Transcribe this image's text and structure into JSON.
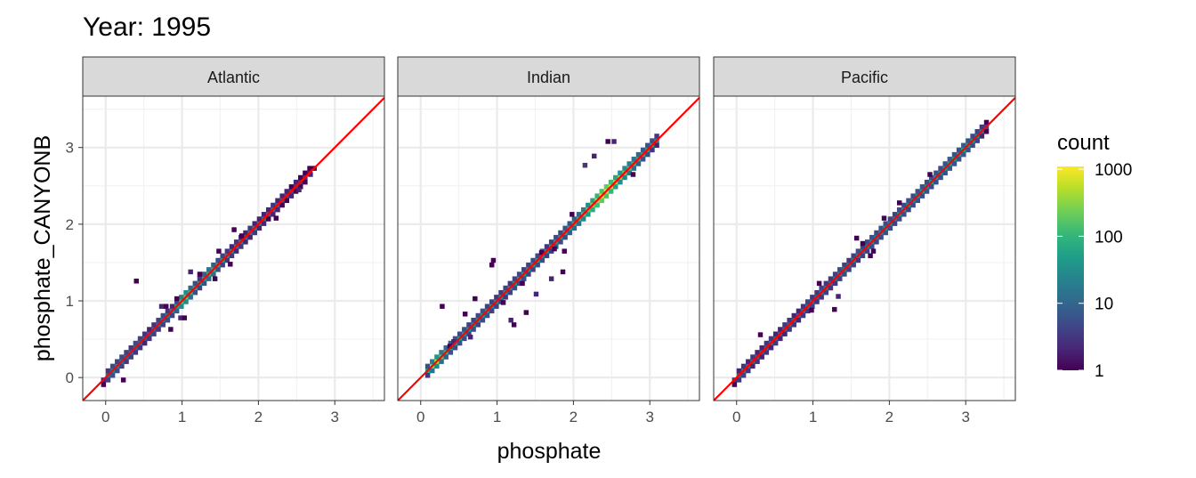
{
  "title": "Year: 1995",
  "chart_data": {
    "type": "heatmap",
    "subtype": "faceted 2D binned count (log color scale) with identity line",
    "title": "Year: 1995",
    "xlabel": "phosphate",
    "ylabel": "phosphate_CANYONB",
    "xlim": [
      -0.3,
      3.65
    ],
    "ylim": [
      -0.3,
      3.67
    ],
    "x_ticks": [
      "0",
      "1",
      "2",
      "3"
    ],
    "y_ticks": [
      "0",
      "1",
      "2",
      "3"
    ],
    "grid": true,
    "reference_line": {
      "slope": 1,
      "intercept": 0,
      "color": "#ff0000"
    },
    "bin_width": 0.06,
    "legend": {
      "title": "count",
      "position": "right",
      "scale": "log10",
      "range": [
        1,
        1100
      ],
      "labels": [
        "1000",
        "100",
        "10",
        "1"
      ],
      "label_values": [
        1000,
        100,
        10,
        1
      ],
      "colormap": [
        "#440154",
        "#482878",
        "#3e4989",
        "#31688e",
        "#26828e",
        "#1f9e89",
        "#35b779",
        "#6ece58",
        "#b5de2b",
        "#fde725"
      ]
    },
    "panels": [
      {
        "label": "Atlantic",
        "band": {
          "x_start": -0.06,
          "center": [
            2,
            15,
            20,
            20,
            15,
            12,
            10,
            10,
            12,
            8,
            8,
            10,
            12,
            15,
            20,
            30,
            60,
            150,
            200,
            100,
            60,
            40,
            50,
            80,
            100,
            60,
            40,
            30,
            25,
            20,
            20,
            15,
            20,
            25,
            20,
            15,
            10,
            12,
            10,
            8,
            6,
            5,
            4,
            3,
            3,
            2,
            1
          ],
          "above": [
            0,
            3,
            5,
            4,
            5,
            4,
            3,
            5,
            4,
            3,
            2,
            3,
            4,
            5,
            3,
            2,
            5,
            20,
            30,
            10,
            5,
            3,
            8,
            15,
            8,
            5,
            4,
            3,
            2,
            3,
            2,
            2,
            3,
            2,
            2,
            2,
            2,
            3,
            2,
            2,
            2,
            1,
            2,
            1,
            1,
            1,
            0
          ],
          "below": [
            1,
            4,
            6,
            5,
            4,
            3,
            4,
            3,
            3,
            2,
            3,
            4,
            3,
            4,
            5,
            4,
            8,
            25,
            30,
            12,
            6,
            4,
            6,
            10,
            12,
            6,
            4,
            3,
            3,
            2,
            3,
            2,
            2,
            3,
            2,
            2,
            1,
            2,
            2,
            1,
            1,
            2,
            1,
            1,
            1,
            0,
            0
          ]
        },
        "outliers": [
          [
            0.37,
            1.23,
            1
          ],
          [
            0.7,
            0.9,
            2
          ],
          [
            0.76,
            0.9,
            1
          ],
          [
            0.95,
            0.75,
            2
          ],
          [
            1.0,
            0.75,
            1
          ],
          [
            0.82,
            0.6,
            1
          ],
          [
            1.2,
            1.32,
            1
          ],
          [
            1.45,
            1.62,
            1
          ],
          [
            1.65,
            1.9,
            1
          ],
          [
            1.4,
            1.26,
            1
          ],
          [
            2.5,
            2.42,
            2
          ],
          [
            1.6,
            1.45,
            1
          ],
          [
            0.2,
            -0.06,
            1
          ],
          [
            2.65,
            2.62,
            2
          ],
          [
            1.75,
            1.82,
            1
          ],
          [
            1.08,
            1.35,
            2
          ],
          [
            0.9,
            1.0,
            1
          ],
          [
            2.2,
            2.05,
            1
          ]
        ]
      },
      {
        "label": "Indian",
        "band": {
          "x_start": 0.06,
          "center": [
            50,
            300,
            500,
            200,
            100,
            60,
            50,
            40,
            40,
            35,
            30,
            30,
            40,
            35,
            30,
            30,
            25,
            30,
            30,
            35,
            40,
            40,
            35,
            40,
            40,
            35,
            30,
            40,
            50,
            40,
            60,
            60,
            80,
            100,
            150,
            200,
            300,
            500,
            800,
            1000,
            600,
            400,
            300,
            200,
            150,
            100,
            80,
            60,
            50,
            40,
            30
          ],
          "above": [
            5,
            20,
            40,
            15,
            10,
            8,
            6,
            5,
            6,
            4,
            4,
            5,
            6,
            4,
            4,
            3,
            3,
            4,
            3,
            4,
            5,
            4,
            4,
            5,
            5,
            4,
            3,
            4,
            5,
            4,
            6,
            6,
            8,
            10,
            20,
            30,
            60,
            100,
            150,
            200,
            120,
            60,
            40,
            30,
            20,
            15,
            10,
            8,
            6,
            5,
            3
          ],
          "below": [
            3,
            15,
            30,
            12,
            8,
            6,
            5,
            6,
            5,
            4,
            5,
            4,
            5,
            6,
            4,
            4,
            4,
            3,
            4,
            5,
            4,
            5,
            4,
            4,
            5,
            5,
            4,
            3,
            6,
            5,
            5,
            8,
            10,
            12,
            25,
            40,
            80,
            120,
            200,
            150,
            100,
            50,
            30,
            25,
            15,
            12,
            8,
            6,
            5,
            3,
            2
          ]
        },
        "outliers": [
          [
            2.42,
            3.05,
            1
          ],
          [
            2.5,
            3.05,
            2
          ],
          [
            2.24,
            2.86,
            2
          ],
          [
            2.12,
            2.74,
            3
          ],
          [
            0.9,
            1.44,
            1
          ],
          [
            0.92,
            1.5,
            1
          ],
          [
            1.72,
            1.65,
            1
          ],
          [
            1.19,
            0.66,
            1
          ],
          [
            1.83,
            1.35,
            1
          ],
          [
            0.55,
            0.8,
            1
          ],
          [
            1.48,
            1.06,
            2
          ],
          [
            1.68,
            1.26,
            2
          ],
          [
            1.15,
            0.72,
            2
          ],
          [
            1.05,
            0.95,
            1
          ],
          [
            0.68,
            1.0,
            1
          ],
          [
            1.85,
            1.62,
            1
          ],
          [
            0.4,
            0.44,
            2
          ],
          [
            0.35,
            0.38,
            1
          ],
          [
            1.3,
            1.2,
            1
          ],
          [
            1.55,
            1.6,
            1
          ],
          [
            2.75,
            2.62,
            1
          ],
          [
            1.95,
            2.1,
            1
          ],
          [
            0.25,
            0.9,
            1
          ],
          [
            1.35,
            0.82,
            1
          ],
          [
            0.62,
            0.5,
            2
          ]
        ]
      },
      {
        "label": "Pacific",
        "band": {
          "x_start": -0.06,
          "center": [
            3,
            10,
            15,
            12,
            10,
            10,
            8,
            10,
            12,
            10,
            8,
            10,
            12,
            10,
            10,
            12,
            15,
            12,
            10,
            15,
            15,
            12,
            15,
            20,
            18,
            15,
            20,
            20,
            15,
            20,
            25,
            20,
            25,
            30,
            25,
            20,
            25,
            30,
            30,
            25,
            30,
            35,
            30,
            40,
            35,
            30,
            40,
            50,
            45,
            40,
            50,
            45,
            35,
            25,
            15,
            5
          ],
          "above": [
            0,
            2,
            3,
            2,
            3,
            2,
            2,
            3,
            3,
            2,
            2,
            3,
            3,
            2,
            2,
            3,
            4,
            3,
            3,
            4,
            3,
            3,
            4,
            5,
            4,
            3,
            4,
            5,
            4,
            5,
            6,
            5,
            6,
            5,
            4,
            4,
            5,
            5,
            6,
            5,
            6,
            6,
            5,
            6,
            6,
            5,
            6,
            8,
            6,
            6,
            8,
            6,
            5,
            4,
            3,
            1
          ],
          "below": [
            1,
            3,
            4,
            3,
            2,
            3,
            2,
            3,
            2,
            3,
            2,
            2,
            3,
            3,
            2,
            3,
            3,
            4,
            3,
            3,
            4,
            3,
            3,
            4,
            5,
            4,
            4,
            3,
            4,
            4,
            5,
            4,
            5,
            6,
            5,
            4,
            5,
            5,
            4,
            5,
            6,
            5,
            6,
            5,
            5,
            6,
            6,
            7,
            6,
            6,
            7,
            6,
            5,
            4,
            2,
            1
          ]
        },
        "outliers": [
          [
            0.28,
            0.53,
            1
          ],
          [
            1.25,
            0.86,
            1
          ],
          [
            1.3,
            1.03,
            2
          ],
          [
            1.72,
            1.56,
            1
          ],
          [
            1.76,
            1.62,
            1
          ],
          [
            1.54,
            1.79,
            1
          ],
          [
            1.62,
            1.72,
            1
          ],
          [
            1.05,
            1.2,
            1
          ],
          [
            0.95,
            0.85,
            1
          ],
          [
            2.1,
            2.25,
            1
          ],
          [
            2.5,
            2.62,
            1
          ],
          [
            1.9,
            2.05,
            1
          ]
        ]
      }
    ]
  }
}
